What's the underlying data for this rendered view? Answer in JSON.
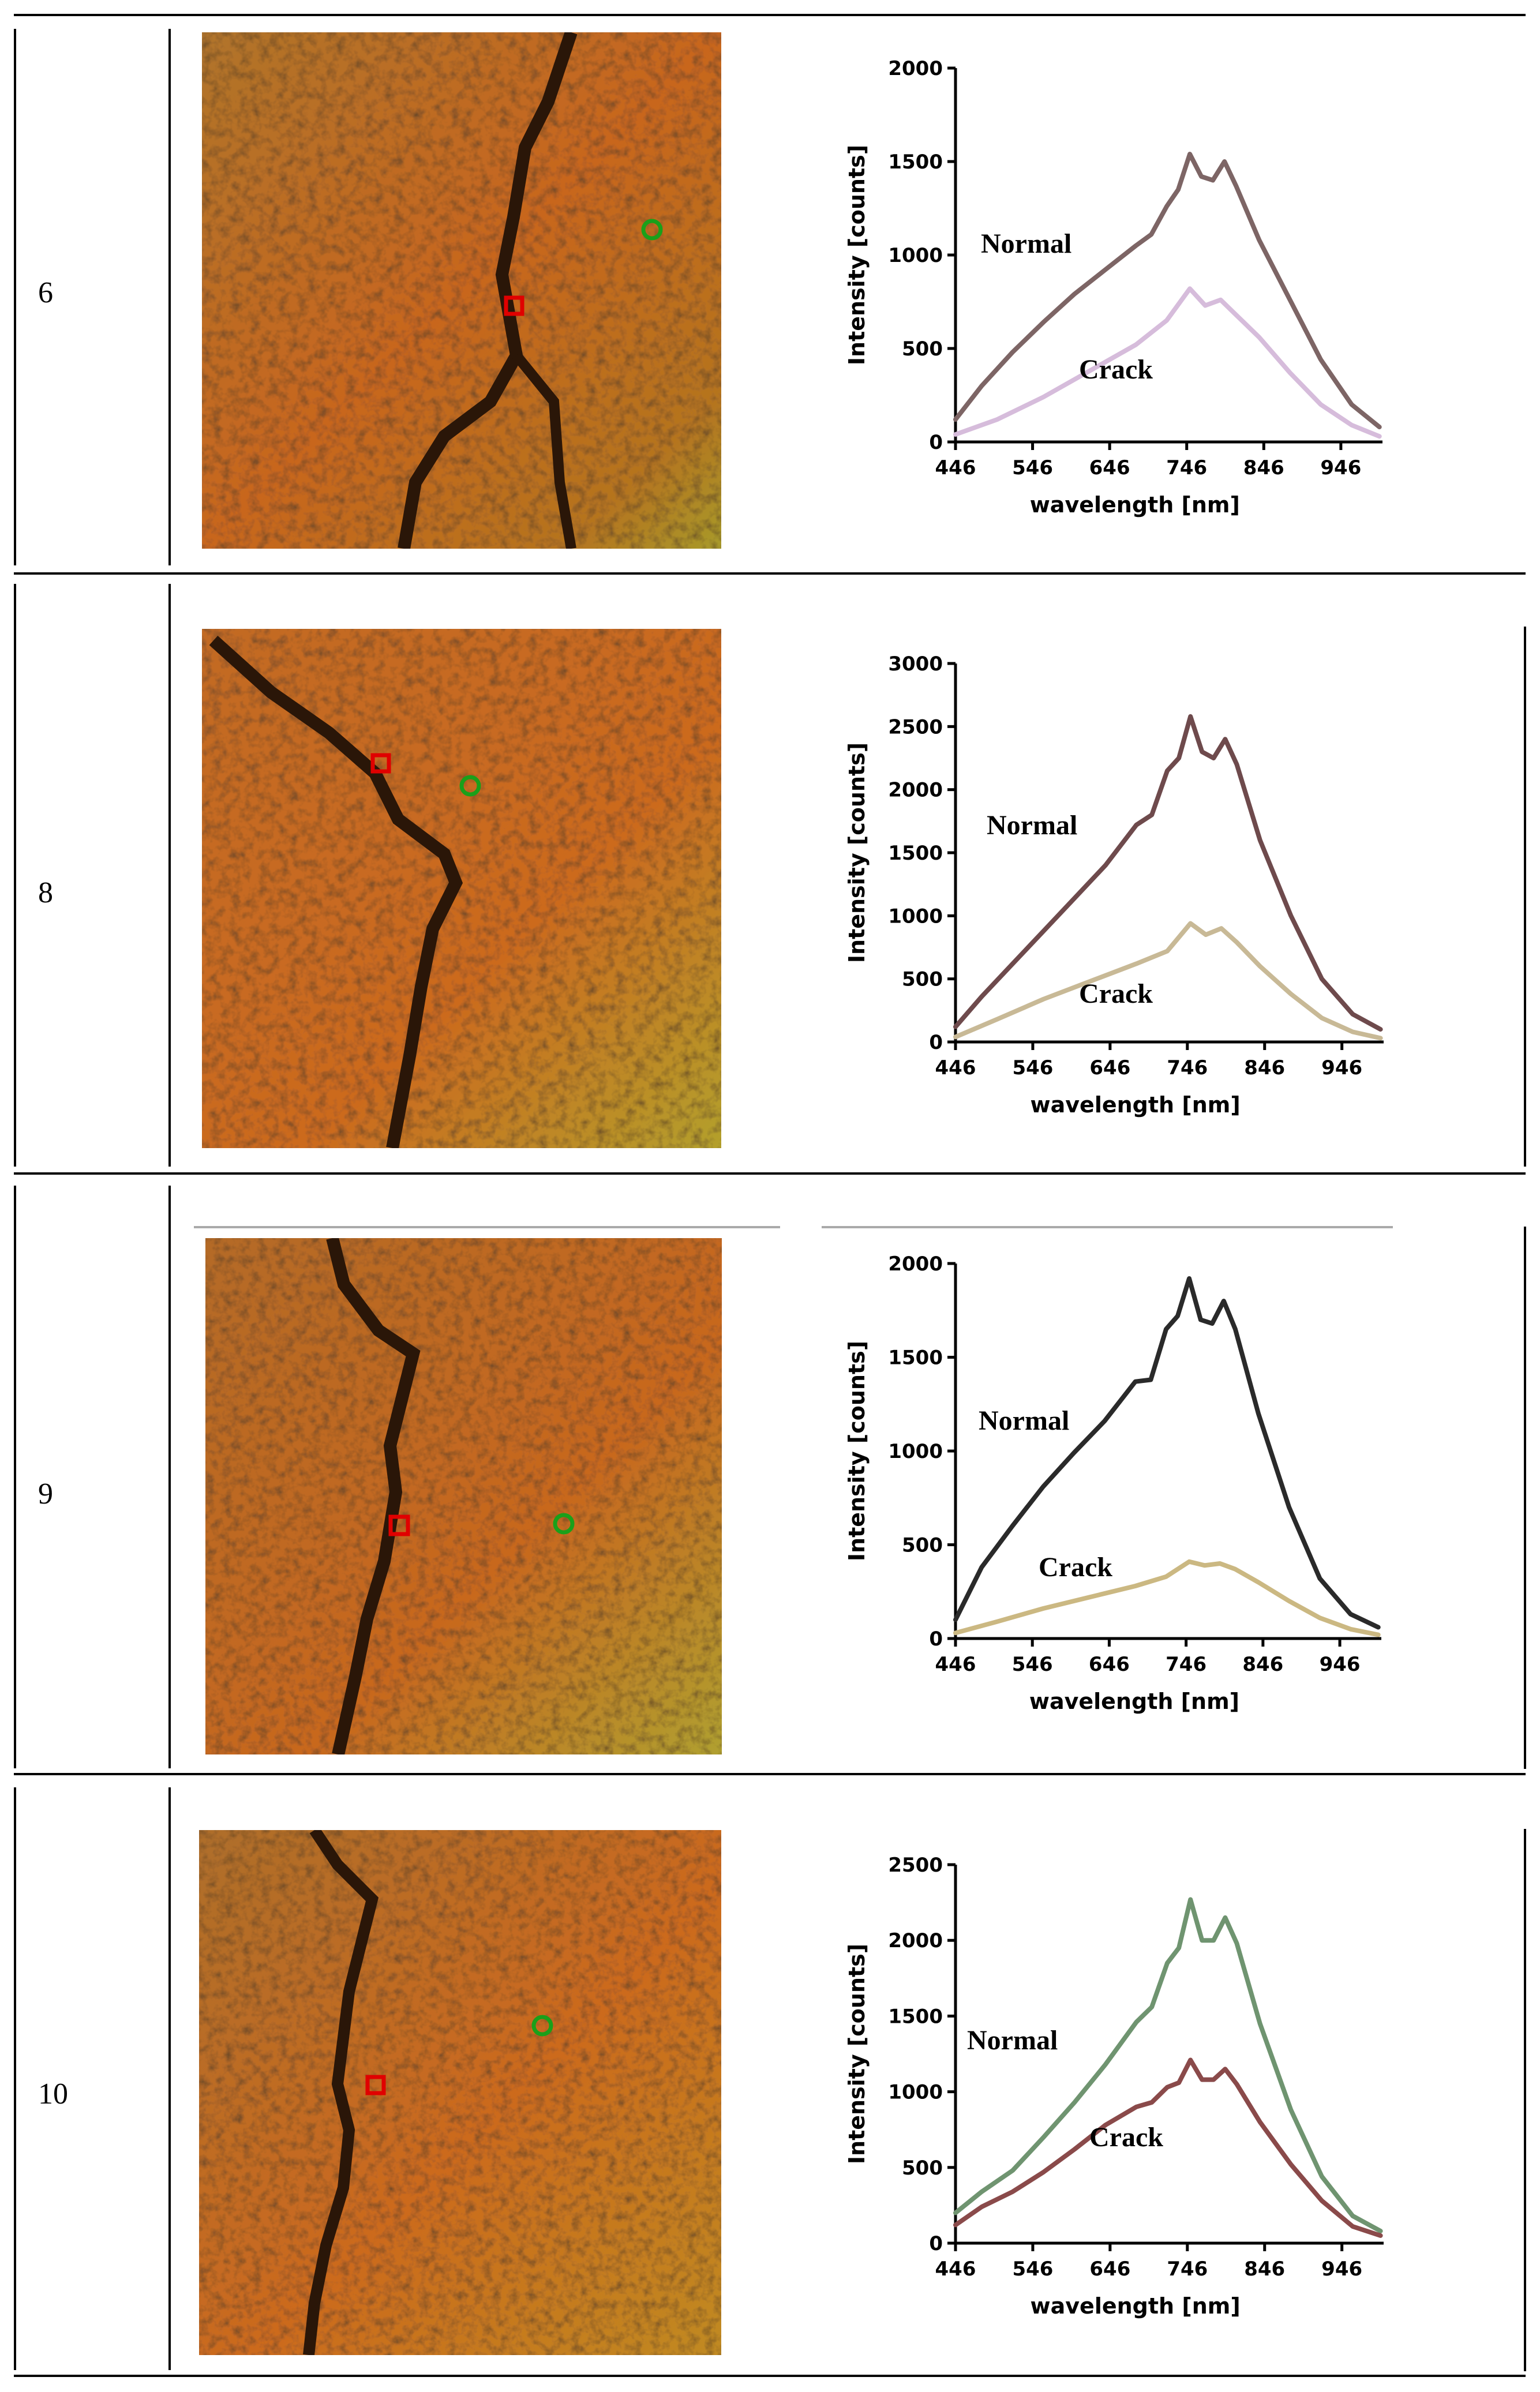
{
  "table": {
    "rows": [
      {
        "label": "6",
        "chart_data": {
          "type": "line",
          "title": "",
          "xlabel": "wavelength [nm]",
          "ylabel": "Intensity [counts]",
          "xlim": [
            446,
            1000
          ],
          "ylim": [
            0,
            2000
          ],
          "xticks": [
            446,
            546,
            646,
            746,
            846,
            946
          ],
          "yticks": [
            0,
            500,
            1000,
            1500,
            2000
          ],
          "series": [
            {
              "name": "Normal",
              "color": "#7d6565",
              "x": [
                446,
                480,
                520,
                560,
                600,
                640,
                680,
                700,
                720,
                735,
                750,
                765,
                780,
                795,
                810,
                840,
                880,
                920,
                960,
                996
              ],
              "y": [
                120,
                300,
                480,
                640,
                790,
                920,
                1050,
                1110,
                1260,
                1350,
                1540,
                1420,
                1400,
                1500,
                1370,
                1080,
                760,
                440,
                200,
                80
              ]
            },
            {
              "name": "Crack",
              "color": "#d6bcdb",
              "x": [
                446,
                500,
                560,
                620,
                680,
                720,
                750,
                770,
                790,
                810,
                840,
                880,
                920,
                960,
                996
              ],
              "y": [
                40,
                120,
                240,
                380,
                520,
                650,
                820,
                730,
                760,
                680,
                560,
                370,
                200,
                90,
                30
              ]
            }
          ],
          "annotations": [
            "Normal",
            "Crack"
          ]
        }
      },
      {
        "label": "8",
        "chart_data": {
          "type": "line",
          "title": "",
          "xlabel": "wavelength [nm]",
          "ylabel": "Intensity [counts]",
          "xlim": [
            446,
            1000
          ],
          "ylim": [
            0,
            3000
          ],
          "xticks": [
            446,
            546,
            646,
            746,
            846,
            946
          ],
          "yticks": [
            0,
            500,
            1000,
            1500,
            2000,
            2500,
            3000
          ],
          "series": [
            {
              "name": "Normal",
              "color": "#6e4a4c",
              "x": [
                446,
                480,
                520,
                560,
                600,
                640,
                680,
                700,
                720,
                735,
                750,
                765,
                780,
                795,
                810,
                840,
                880,
                920,
                960,
                996
              ],
              "y": [
                120,
                360,
                620,
                880,
                1140,
                1400,
                1720,
                1800,
                2150,
                2250,
                2580,
                2300,
                2250,
                2400,
                2200,
                1600,
                1000,
                500,
                220,
                100
              ]
            },
            {
              "name": "Crack",
              "color": "#c8b996",
              "x": [
                446,
                500,
                560,
                620,
                680,
                720,
                750,
                770,
                790,
                810,
                840,
                880,
                920,
                960,
                996
              ],
              "y": [
                40,
                180,
                340,
                480,
                620,
                720,
                940,
                850,
                900,
                790,
                600,
                380,
                190,
                80,
                30
              ]
            }
          ],
          "annotations": [
            "Normal",
            "Crack"
          ]
        }
      },
      {
        "label": "9",
        "chart_data": {
          "type": "line",
          "title": "",
          "xlabel": "wavelength [nm]",
          "ylabel": "Intensity [counts]",
          "xlim": [
            446,
            1000
          ],
          "ylim": [
            0,
            2000
          ],
          "xticks": [
            446,
            546,
            646,
            746,
            846,
            946
          ],
          "yticks": [
            0,
            500,
            1000,
            1500,
            2000
          ],
          "series": [
            {
              "name": "Normal",
              "color": "#2a2a2a",
              "x": [
                446,
                480,
                520,
                560,
                600,
                640,
                680,
                700,
                720,
                735,
                750,
                765,
                780,
                795,
                810,
                840,
                880,
                920,
                960,
                996
              ],
              "y": [
                100,
                380,
                600,
                810,
                990,
                1160,
                1370,
                1380,
                1650,
                1720,
                1920,
                1700,
                1680,
                1800,
                1650,
                1200,
                700,
                320,
                130,
                60
              ]
            },
            {
              "name": "Crack",
              "color": "#cbb882",
              "x": [
                446,
                500,
                560,
                620,
                680,
                720,
                750,
                770,
                790,
                810,
                840,
                880,
                920,
                960,
                996
              ],
              "y": [
                30,
                90,
                160,
                220,
                280,
                330,
                410,
                390,
                400,
                370,
                300,
                200,
                110,
                50,
                20
              ]
            }
          ],
          "annotations": [
            "Normal",
            "Crack"
          ]
        }
      },
      {
        "label": "10",
        "chart_data": {
          "type": "line",
          "title": "",
          "xlabel": "wavelength [nm]",
          "ylabel": "Intensity [counts]",
          "xlim": [
            446,
            1000
          ],
          "ylim": [
            0,
            2500
          ],
          "xticks": [
            446,
            546,
            646,
            746,
            846,
            946
          ],
          "yticks": [
            0,
            500,
            1000,
            1500,
            2000,
            2500
          ],
          "series": [
            {
              "name": "Normal",
              "color": "#6f9470",
              "x": [
                446,
                480,
                520,
                560,
                600,
                640,
                680,
                700,
                720,
                735,
                750,
                765,
                780,
                795,
                810,
                840,
                880,
                920,
                960,
                996
              ],
              "y": [
                200,
                340,
                480,
                700,
                930,
                1180,
                1460,
                1560,
                1850,
                1950,
                2270,
                2000,
                2000,
                2150,
                1980,
                1450,
                880,
                440,
                180,
                80
              ]
            },
            {
              "name": "Crack",
              "color": "#8a4a4a",
              "x": [
                446,
                480,
                520,
                560,
                600,
                640,
                680,
                700,
                720,
                735,
                750,
                765,
                780,
                795,
                810,
                840,
                880,
                920,
                960,
                996
              ],
              "y": [
                120,
                240,
                340,
                470,
                620,
                780,
                900,
                930,
                1030,
                1060,
                1210,
                1080,
                1080,
                1150,
                1050,
                800,
                520,
                280,
                110,
                50
              ]
            }
          ],
          "annotations": [
            "Normal",
            "Crack"
          ]
        }
      }
    ]
  }
}
